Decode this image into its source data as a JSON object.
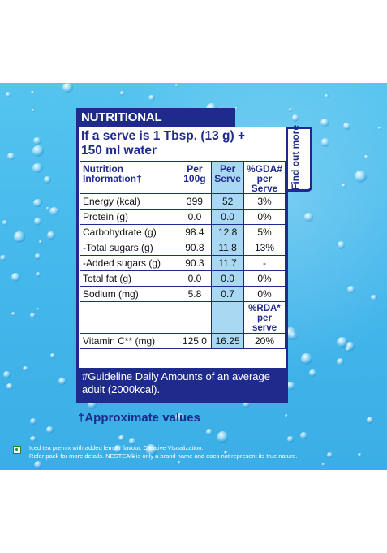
{
  "title": "NUTRITIONAL INFORMATION",
  "serve_text_line1": "If a serve is 1 Tbsp. (13 g) +",
  "serve_text_line2": "150 ml water",
  "side_tab": "Find out more",
  "headers": {
    "name": "Nutrition Information†",
    "per100g": "Per 100g",
    "perserve": "Per Serve",
    "gda": "%GDA# per Serve"
  },
  "rows": [
    {
      "name": "Energy (kcal)",
      "per100g": "399",
      "perserve": "52",
      "gda": "3%"
    },
    {
      "name": "Protein (g)",
      "per100g": "0.0",
      "perserve": "0.0",
      "gda": "0%"
    },
    {
      "name": "Carbohydrate (g)",
      "per100g": "98.4",
      "perserve": "12.8",
      "gda": "5%"
    },
    {
      "name": "-Total sugars (g)",
      "per100g": "90.8",
      "perserve": "11.8",
      "gda": "13%"
    },
    {
      "name": "-Added sugars (g)",
      "per100g": "90.3",
      "perserve": "11.7",
      "gda": "-"
    },
    {
      "name": "Total fat (g)",
      "per100g": "0.0",
      "perserve": "0.0",
      "gda": "0%"
    },
    {
      "name": "Sodium (mg)",
      "per100g": "5.8",
      "perserve": "0.7",
      "gda": "0%"
    }
  ],
  "rda_header": "%RDA* per serve",
  "vitamin_row": {
    "name": "Vitamin C** (mg)",
    "per100g": "125.0",
    "perserve": "16.25",
    "rda": "20%"
  },
  "guideline_line1": "#Guideline Daily Amounts of an average",
  "guideline_line2": "adult (2000kcal).",
  "approx": "†Approximate values",
  "disclaimer_line1": "Iced tea premix with added lemon flavour. Creative Visualization.",
  "disclaimer_line2": "Refer pack for more details. NESTEA® is only a brand name and does not represent its true nature."
}
